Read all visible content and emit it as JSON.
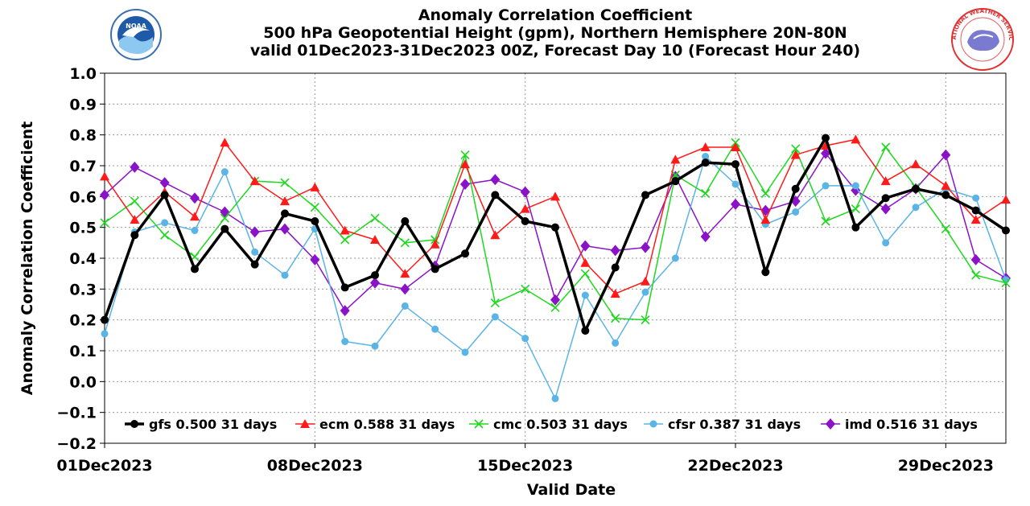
{
  "header": {
    "title_line1": "Anomaly Correlation Coefficient",
    "title_line2": "500 hPa Geopotential Height (gpm), Northern Hemisphere 20N-80N",
    "title_line3": "valid 01Dec2023-31Dec2023 00Z, Forecast Day 10 (Forecast Hour 240)",
    "left_logo": "NOAA",
    "right_logo": "NATIONAL WEATHER SERVICE"
  },
  "chart_data": {
    "type": "line",
    "title": "Anomaly Correlation Coefficient",
    "xlabel": "Valid Date",
    "ylabel": "Anomaly Correlation Coefficient",
    "ylim": [
      -0.2,
      1.0
    ],
    "xlim": [
      1,
      31
    ],
    "grid": true,
    "legend_position": "bottom-inside",
    "yticks": [
      "1.0",
      "0.9",
      "0.8",
      "0.7",
      "0.6",
      "0.5",
      "0.4",
      "0.3",
      "0.2",
      "0.1",
      "0.0",
      "−0.1",
      "−0.2"
    ],
    "ytick_values": [
      1.0,
      0.9,
      0.8,
      0.7,
      0.6,
      0.5,
      0.4,
      0.3,
      0.2,
      0.1,
      0.0,
      -0.1,
      -0.2
    ],
    "xtick_labels": [
      {
        "day": 1,
        "label": "01Dec2023"
      },
      {
        "day": 8,
        "label": "08Dec2023"
      },
      {
        "day": 15,
        "label": "15Dec2023"
      },
      {
        "day": 22,
        "label": "22Dec2023"
      },
      {
        "day": 29,
        "label": "29Dec2023"
      }
    ],
    "x": [
      1,
      2,
      3,
      4,
      5,
      6,
      7,
      8,
      9,
      10,
      11,
      12,
      13,
      14,
      15,
      16,
      17,
      18,
      19,
      20,
      21,
      22,
      23,
      24,
      25,
      26,
      27,
      28,
      29,
      30,
      31
    ],
    "series": [
      {
        "name": "gfs",
        "legend": "gfs 0.500 31 days",
        "color": "#000000",
        "marker": "circle",
        "width": 3.5,
        "values": [
          0.2,
          0.475,
          0.605,
          0.365,
          0.495,
          0.38,
          0.545,
          0.52,
          0.305,
          0.345,
          0.52,
          0.365,
          0.415,
          0.605,
          0.52,
          0.5,
          0.165,
          0.37,
          0.605,
          0.65,
          0.71,
          0.705,
          0.355,
          0.625,
          0.79,
          0.5,
          0.595,
          0.625,
          0.605,
          0.555,
          0.49
        ]
      },
      {
        "name": "ecm",
        "legend": "ecm 0.588 31 days",
        "color": "#ff1a1a",
        "marker": "triangle",
        "width": 1.5,
        "values": [
          0.665,
          0.525,
          0.615,
          0.535,
          0.775,
          0.65,
          0.585,
          0.63,
          0.49,
          0.46,
          0.35,
          0.445,
          0.705,
          0.475,
          0.56,
          0.6,
          0.385,
          0.285,
          0.325,
          0.72,
          0.76,
          0.76,
          0.525,
          0.735,
          0.765,
          0.785,
          0.65,
          0.705,
          0.635,
          0.525,
          0.59
        ]
      },
      {
        "name": "cmc",
        "legend": "cmc 0.503 31 days",
        "color": "#1ed81e",
        "marker": "x",
        "width": 1.5,
        "values": [
          0.515,
          0.585,
          0.475,
          0.405,
          0.53,
          0.65,
          0.645,
          0.565,
          0.46,
          0.53,
          0.45,
          0.46,
          0.735,
          0.255,
          0.3,
          0.24,
          0.35,
          0.205,
          0.2,
          0.67,
          0.61,
          0.775,
          0.61,
          0.755,
          0.52,
          0.56,
          0.76,
          0.63,
          0.495,
          0.345,
          0.32
        ]
      },
      {
        "name": "cfsr",
        "legend": "cfsr 0.387 31 days",
        "color": "#5ab4e6",
        "marker": "dot",
        "width": 1.5,
        "values": [
          0.155,
          0.485,
          0.515,
          0.49,
          0.68,
          0.42,
          0.345,
          0.495,
          0.13,
          0.115,
          0.245,
          0.17,
          0.095,
          0.21,
          0.14,
          -0.055,
          0.28,
          0.125,
          0.29,
          0.4,
          0.73,
          0.64,
          0.51,
          0.55,
          0.635,
          0.635,
          0.45,
          0.565,
          0.625,
          0.595,
          0.33
        ]
      },
      {
        "name": "imd",
        "legend": "imd 0.516 31 days",
        "color": "#8a12c8",
        "marker": "diamond",
        "width": 1.5,
        "values": [
          0.605,
          0.695,
          0.645,
          0.595,
          0.55,
          0.485,
          0.495,
          0.395,
          0.23,
          0.32,
          0.3,
          0.375,
          0.64,
          0.655,
          0.615,
          0.265,
          0.44,
          0.425,
          0.435,
          0.665,
          0.47,
          0.575,
          0.555,
          0.585,
          0.74,
          0.62,
          0.56,
          0.625,
          0.735,
          0.395,
          0.335
        ]
      }
    ]
  }
}
